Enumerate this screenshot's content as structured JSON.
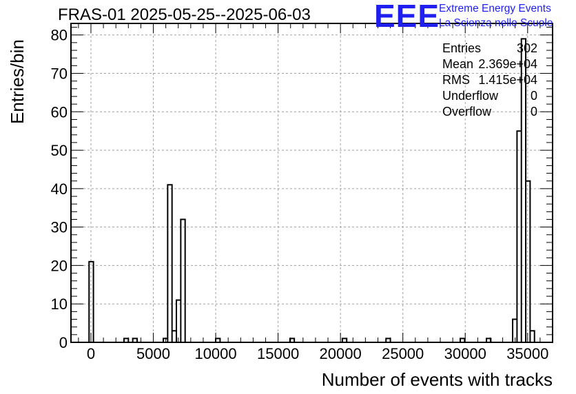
{
  "chart_data": {
    "type": "histogram",
    "title": "FRAS-01 2025-05-25--2025-06-03",
    "xlabel": "Number of events with tracks",
    "ylabel": "Entries/bin",
    "xlim": [
      -1600,
      37000
    ],
    "ylim": [
      0,
      83
    ],
    "bin_width": 350,
    "grid": true,
    "x_ticks": [
      0,
      5000,
      10000,
      15000,
      20000,
      25000,
      30000,
      35000
    ],
    "x_tick_labels": [
      "0",
      "5000",
      "10000",
      "15000",
      "20000",
      "25000",
      "30000",
      "35000"
    ],
    "y_ticks": [
      0,
      10,
      20,
      30,
      40,
      50,
      60,
      70,
      80
    ],
    "y_tick_labels": [
      "0",
      "10",
      "20",
      "30",
      "40",
      "50",
      "60",
      "70",
      "80"
    ],
    "bins": [
      {
        "x": -150,
        "count": 21
      },
      {
        "x": 2650,
        "count": 1
      },
      {
        "x": 3350,
        "count": 1
      },
      {
        "x": 5800,
        "count": 1
      },
      {
        "x": 6150,
        "count": 41
      },
      {
        "x": 6500,
        "count": 3
      },
      {
        "x": 6850,
        "count": 11
      },
      {
        "x": 7200,
        "count": 32
      },
      {
        "x": 10000,
        "count": 1
      },
      {
        "x": 15950,
        "count": 1
      },
      {
        "x": 20150,
        "count": 1
      },
      {
        "x": 23650,
        "count": 1
      },
      {
        "x": 29600,
        "count": 1
      },
      {
        "x": 31700,
        "count": 1
      },
      {
        "x": 33800,
        "count": 6
      },
      {
        "x": 34150,
        "count": 55
      },
      {
        "x": 34500,
        "count": 79
      },
      {
        "x": 34850,
        "count": 42
      },
      {
        "x": 35200,
        "count": 3
      }
    ]
  },
  "logo": {
    "mark": "EEE",
    "line1": "Extreme Energy Events",
    "line2": "La Scienza nelle Scuole"
  },
  "stats": [
    {
      "label": "Entries",
      "value": "302"
    },
    {
      "label": "Mean",
      "value": "2.369e+04"
    },
    {
      "label": "RMS",
      "value": "1.415e+04"
    },
    {
      "label": "Underflow",
      "value": "0"
    },
    {
      "label": "Overflow",
      "value": "0"
    }
  ],
  "colors": {
    "logo": "#1f1ff0",
    "grid": "#a0a0a0",
    "line": "#000000"
  }
}
